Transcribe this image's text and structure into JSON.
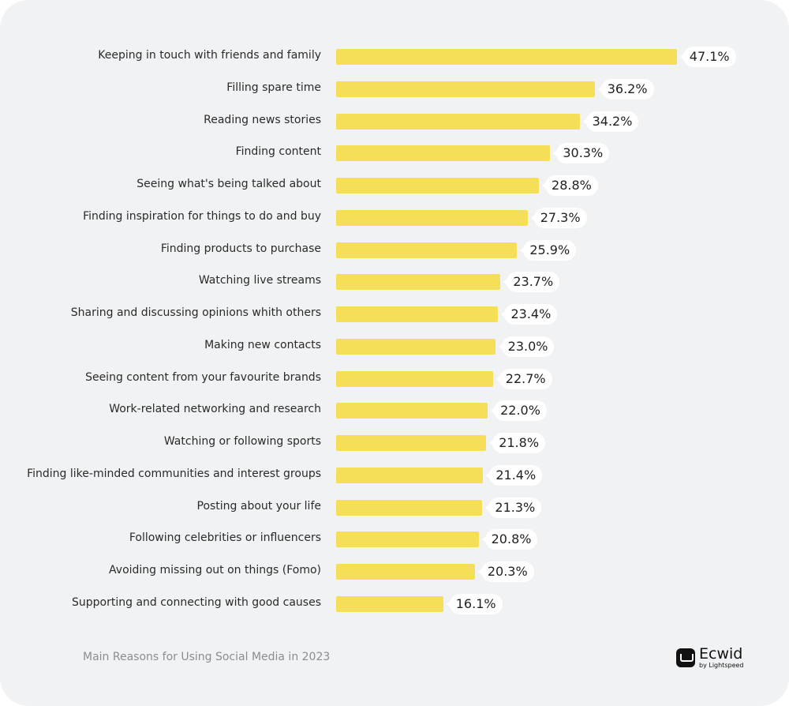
{
  "chart_data": {
    "type": "bar",
    "orientation": "horizontal",
    "title": "",
    "xlabel": "",
    "ylabel": "",
    "value_suffix": "%",
    "bar_color": "#f6df58",
    "background": "#f1f2f3",
    "grid": false,
    "categories": [
      "Keeping in touch with friends and family",
      "Filling spare time",
      "Reading news stories",
      "Finding content",
      "Seeing what's being talked about",
      "Finding inspiration for things to do and buy",
      "Finding products to purchase",
      "Watching live streams",
      "Sharing and discussing opinions whith others",
      "Making new contacts",
      "Seeing content from your favourite brands",
      "Work-related networking and research",
      "Watching or following sports",
      "Finding like-minded communities and interest groups",
      "Posting about your life",
      "Following celebrities or influencers",
      "Avoiding missing out on things (Fomo)",
      "Supporting and connecting with good causes"
    ],
    "values": [
      47.1,
      36.2,
      34.2,
      30.3,
      28.8,
      27.3,
      25.9,
      23.7,
      23.4,
      23.0,
      22.7,
      22.0,
      21.8,
      21.4,
      21.3,
      20.8,
      20.3,
      16.1
    ],
    "data_labels": [
      "47.1%",
      "36.2%",
      "34.2%",
      "30.3%",
      "28.8%",
      "27.3%",
      "25.9%",
      "23.7%",
      "23.4%",
      "23.0%",
      "22.7%",
      "22.0%",
      "21.8%",
      "21.4%",
      "21.3%",
      "20.8%",
      "20.3%",
      "16.1%"
    ]
  },
  "footer": {
    "caption": "Main Reasons for Using Social Media in 2023"
  },
  "logo": {
    "name": "Ecwid",
    "sub": "by Lightspeed",
    "icon": "shopping-cart-icon"
  }
}
